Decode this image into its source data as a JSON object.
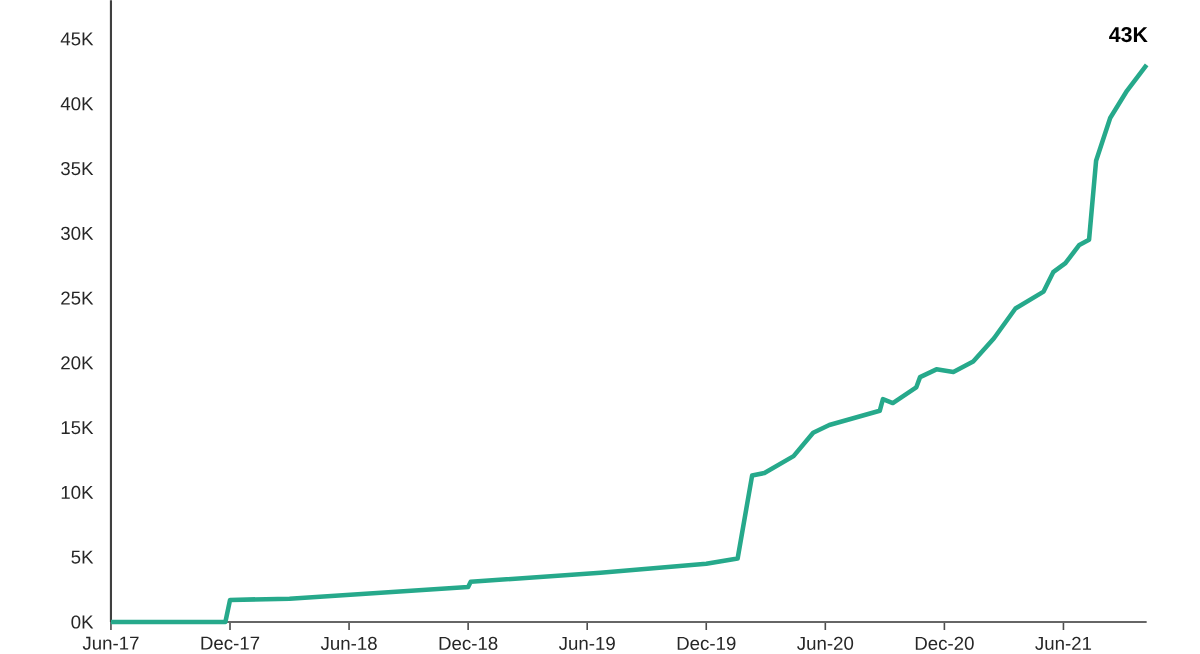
{
  "chart_data": {
    "type": "line",
    "color": "#26a98b",
    "x": [
      "2017-06-01",
      "2017-11-24",
      "2017-12-01",
      "2018-03-01",
      "2018-12-01",
      "2018-12-05",
      "2019-06-21",
      "2019-12-01",
      "2020-01-19",
      "2020-02-10",
      "2020-02-28",
      "2020-04-13",
      "2020-05-13",
      "2020-06-07",
      "2020-08-24",
      "2020-08-29",
      "2020-09-13",
      "2020-10-19",
      "2020-10-25",
      "2020-11-19",
      "2020-12-15",
      "2021-01-15",
      "2021-02-15",
      "2021-03-19",
      "2021-05-01",
      "2021-05-16",
      "2021-06-04",
      "2021-06-25",
      "2021-07-10",
      "2021-07-21",
      "2021-08-12",
      "2021-09-07",
      "2021-10-07"
    ],
    "values": [
      0,
      0,
      1700,
      1800,
      2700,
      3100,
      3800,
      4500,
      4900,
      11300,
      11500,
      12800,
      14600,
      15200,
      16300,
      17200,
      16900,
      18100,
      18900,
      19500,
      19300,
      20100,
      21900,
      24200,
      25500,
      27000,
      27700,
      29100,
      29500,
      35600,
      38900,
      41000,
      43000
    ],
    "xlim": [
      "2017-06-01",
      "2021-10-07"
    ],
    "xticks": [
      {
        "value": "2017-06",
        "label": "Jun-17"
      },
      {
        "value": "2017-12",
        "label": "Dec-17"
      },
      {
        "value": "2018-06",
        "label": "Jun-18"
      },
      {
        "value": "2018-12",
        "label": "Dec-18"
      },
      {
        "value": "2019-06",
        "label": "Jun-19"
      },
      {
        "value": "2019-12",
        "label": "Dec-19"
      },
      {
        "value": "2020-06",
        "label": "Jun-20"
      },
      {
        "value": "2020-12",
        "label": "Dec-20"
      },
      {
        "value": "2021-06",
        "label": "Jun-21"
      }
    ],
    "ylim": [
      0,
      48000
    ],
    "yticks": [
      {
        "value": 0,
        "label": "0K"
      },
      {
        "value": 5000,
        "label": "5K"
      },
      {
        "value": 10000,
        "label": "10K"
      },
      {
        "value": 15000,
        "label": "15K"
      },
      {
        "value": 20000,
        "label": "20K"
      },
      {
        "value": 25000,
        "label": "25K"
      },
      {
        "value": 30000,
        "label": "30K"
      },
      {
        "value": 35000,
        "label": "35K"
      },
      {
        "value": 40000,
        "label": "40K"
      },
      {
        "value": 45000,
        "label": "45K"
      }
    ],
    "annotations": [
      {
        "text": "43K",
        "x": "2021-10-07",
        "y": 43000
      }
    ],
    "grid": false,
    "marker": "none",
    "line_style": "solid"
  }
}
